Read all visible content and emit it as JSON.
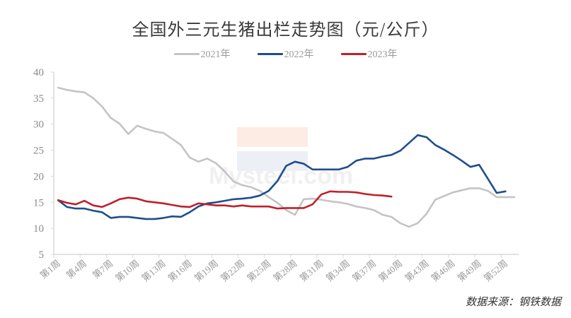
{
  "chart_data": {
    "type": "line",
    "title": "全国外三元生猪出栏走势图（元/公斤）",
    "xlabel": "",
    "ylabel": "",
    "ylim": [
      5,
      40
    ],
    "yticks": [
      5,
      10,
      15,
      20,
      25,
      30,
      35,
      40
    ],
    "grid": false,
    "legend_position": "top",
    "x_tick_labels": [
      "第1周",
      "第4周",
      "第7周",
      "第10周",
      "第13周",
      "第16周",
      "第19周",
      "第22周",
      "第25周",
      "第28周",
      "第31周",
      "第34周",
      "第37周",
      "第40周",
      "第43周",
      "第46周",
      "第49周",
      "第52周"
    ],
    "x": [
      1,
      2,
      3,
      4,
      5,
      6,
      7,
      8,
      9,
      10,
      11,
      12,
      13,
      14,
      15,
      16,
      17,
      18,
      19,
      20,
      21,
      22,
      23,
      24,
      25,
      26,
      27,
      28,
      29,
      30,
      31,
      32,
      33,
      34,
      35,
      36,
      37,
      38,
      39,
      40,
      41,
      42,
      43,
      44,
      45,
      46,
      47,
      48,
      49,
      50,
      51,
      52,
      53
    ],
    "series": [
      {
        "name": "2021年",
        "color": "#c4c4c4",
        "values": [
          37.0,
          36.6,
          36.3,
          36.1,
          35.0,
          33.4,
          31.2,
          30.1,
          28.1,
          29.7,
          29.1,
          28.6,
          28.3,
          27.2,
          26.0,
          23.6,
          22.8,
          23.4,
          22.5,
          20.9,
          19.0,
          18.3,
          17.9,
          17.2,
          16.0,
          14.9,
          13.5,
          12.6,
          15.6,
          15.7,
          15.5,
          15.2,
          15.0,
          14.7,
          14.2,
          13.9,
          13.5,
          12.6,
          12.2,
          11.0,
          10.3,
          11.0,
          12.8,
          15.5,
          16.2,
          16.9,
          17.3,
          17.7,
          17.7,
          17.2,
          16.0,
          16.0,
          16.0
        ]
      },
      {
        "name": "2022年",
        "color": "#1f4e8c",
        "values": [
          15.4,
          14.1,
          13.8,
          13.8,
          13.4,
          13.1,
          12.0,
          12.2,
          12.2,
          12.0,
          11.8,
          11.8,
          12.0,
          12.3,
          12.2,
          13.1,
          14.2,
          14.8,
          15.0,
          15.3,
          15.6,
          15.7,
          15.9,
          16.3,
          17.2,
          19.1,
          22.0,
          22.8,
          22.4,
          21.3,
          21.3,
          21.3,
          21.3,
          21.8,
          23.0,
          23.4,
          23.4,
          23.8,
          24.1,
          24.9,
          26.4,
          27.9,
          27.5,
          26.0,
          25.1,
          24.1,
          23.0,
          21.8,
          22.2,
          19.5,
          16.8,
          17.1,
          null
        ]
      },
      {
        "name": "2023年",
        "color": "#c0202a",
        "values": [
          15.4,
          14.9,
          14.6,
          15.3,
          14.4,
          14.1,
          14.8,
          15.6,
          15.9,
          15.7,
          15.2,
          15.0,
          14.8,
          14.5,
          14.2,
          14.1,
          14.8,
          14.6,
          14.4,
          14.4,
          14.2,
          14.4,
          14.2,
          14.2,
          14.2,
          13.8,
          13.9,
          13.9,
          13.9,
          14.6,
          16.5,
          17.1,
          17.0,
          17.0,
          16.9,
          16.6,
          16.4,
          16.3,
          16.1,
          null,
          null,
          null,
          null,
          null,
          null,
          null,
          null,
          null,
          null,
          null,
          null,
          null,
          null
        ]
      }
    ]
  },
  "source_label": "数据来源：钢铁数据",
  "watermark": "Mysteel.com"
}
